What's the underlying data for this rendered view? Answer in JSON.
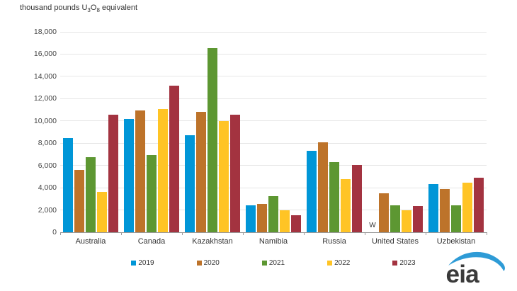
{
  "title": {
    "part1": "thousand pounds U",
    "sub1": "3",
    "part2": "O",
    "sub2": "8",
    "part3": " equivalent"
  },
  "chart_data": {
    "type": "bar",
    "title": "thousand pounds U3O8 equivalent",
    "categories": [
      "Australia",
      "Canada",
      "Kazakhstan",
      "Namibia",
      "Russia",
      "United States",
      "Uzbekistan"
    ],
    "series": [
      {
        "name": "2019",
        "color": "#0096D7",
        "values": [
          8474,
          10157,
          8712,
          2441,
          7343,
          null,
          4343
        ]
      },
      {
        "name": "2020",
        "color": "#BD732A",
        "values": [
          5604,
          10968,
          10788,
          2528,
          8090,
          3527,
          3879
        ]
      },
      {
        "name": "2021",
        "color": "#5D9732",
        "values": [
          6747,
          6913,
          16549,
          3221,
          6302,
          2443,
          2448
        ]
      },
      {
        "name": "2022",
        "color": "#FFC425",
        "values": [
          3631,
          11097,
          9981,
          1942,
          4745,
          1966,
          4459
        ]
      },
      {
        "name": "2023",
        "color": "#A33340",
        "values": [
          10546,
          13162,
          10554,
          1548,
          6045,
          2361,
          4889
        ]
      }
    ],
    "withheld": {
      "category": "United States",
      "series": "2019",
      "label": "W"
    },
    "xlabel": "",
    "ylabel": "thousand pounds U3O8 equivalent",
    "ylim": [
      0,
      18000
    ],
    "ytick_step": 2000,
    "grid": true,
    "legend_position": "bottom"
  },
  "colors": {
    "gridline": "#e6e6e6",
    "axis": "#999999",
    "text": "#333333",
    "logo_swoosh": "#2E9BD6",
    "logo_text": "#3a3a3a"
  },
  "logo": {
    "text": "eia"
  }
}
